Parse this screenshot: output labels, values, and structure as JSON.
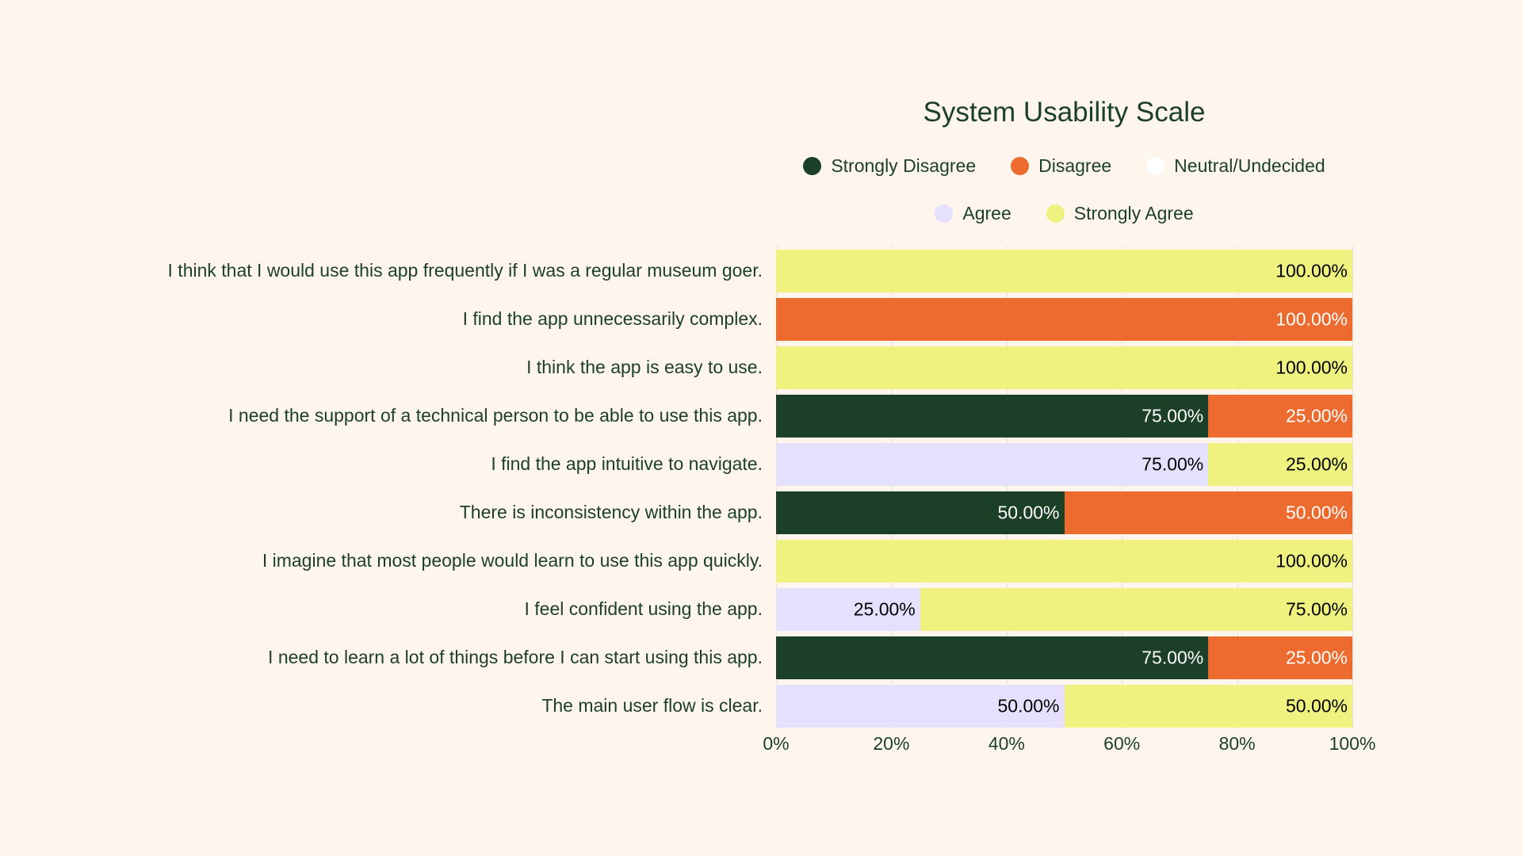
{
  "chart_data": {
    "type": "bar",
    "orientation": "horizontal",
    "stacked": true,
    "title": "System Usability Scale",
    "legend_position": "top",
    "grid": true,
    "xlim": [
      0,
      100
    ],
    "x_ticks": [
      "0%",
      "20%",
      "40%",
      "60%",
      "80%",
      "100%"
    ],
    "categories": [
      "I think that I would use this app frequently if I was a regular museum goer.",
      "I find the app unnecessarily complex.",
      "I think the app is easy to use.",
      "I need the support of a technical person to be able to use this app.",
      "I find the app intuitive to navigate.",
      "There is inconsistency within the app.",
      "I imagine that most people would learn to use this app quickly.",
      "I feel confident using the app.",
      "I need to learn a lot of things before I can start using this app.",
      "The main user flow is clear."
    ],
    "series": [
      {
        "name": "Strongly Disagree",
        "color": "#1b3f27",
        "label_color": "#ffffff",
        "values": [
          0,
          0,
          0,
          75,
          0,
          50,
          0,
          0,
          75,
          0
        ]
      },
      {
        "name": "Disagree",
        "color": "#ed6b2f",
        "label_color": "#ffffff",
        "values": [
          0,
          100,
          0,
          25,
          0,
          50,
          0,
          0,
          25,
          0
        ]
      },
      {
        "name": "Neutral/Undecided",
        "color": "#ffffff",
        "label_color": "#000000",
        "values": [
          0,
          0,
          0,
          0,
          0,
          0,
          0,
          0,
          0,
          0
        ]
      },
      {
        "name": "Agree",
        "color": "#e5e0fd",
        "label_color": "#000000",
        "values": [
          0,
          0,
          0,
          0,
          75,
          0,
          0,
          25,
          0,
          50
        ]
      },
      {
        "name": "Strongly Agree",
        "color": "#f0f280",
        "label_color": "#000000",
        "values": [
          100,
          0,
          100,
          0,
          25,
          0,
          100,
          75,
          0,
          50
        ]
      }
    ]
  }
}
